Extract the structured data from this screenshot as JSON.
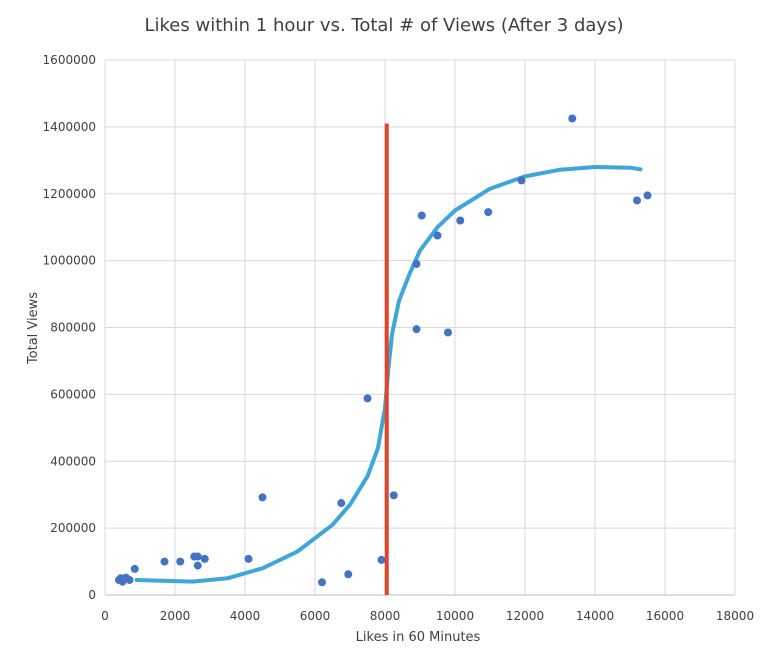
{
  "chart_data": {
    "type": "scatter",
    "title": "Likes within 1 hour vs. Total # of Views (After 3 days)",
    "xlabel": "Likes in 60 Minutes",
    "ylabel": "Total Views",
    "xlim": [
      0,
      18000
    ],
    "ylim": [
      0,
      1600000
    ],
    "xticks": [
      0,
      2000,
      4000,
      6000,
      8000,
      10000,
      12000,
      14000,
      16000,
      18000
    ],
    "yticks": [
      0,
      200000,
      400000,
      600000,
      800000,
      1000000,
      1200000,
      1400000,
      1600000
    ],
    "x_tick_labels": [
      "0",
      "2000",
      "4000",
      "6000",
      "8000",
      "10000",
      "12000",
      "14000",
      "16000",
      "18000"
    ],
    "y_tick_labels": [
      "0",
      "200000",
      "400000",
      "600000",
      "800000",
      "1000000",
      "1200000",
      "1400000",
      "1600000"
    ],
    "grid": true,
    "colors": {
      "points": "#4472c4",
      "trend": "#3ea6d8",
      "threshold": "#e0452a"
    },
    "points": [
      {
        "x": 400,
        "y": 45000
      },
      {
        "x": 450,
        "y": 50000
      },
      {
        "x": 500,
        "y": 40000
      },
      {
        "x": 550,
        "y": 48000
      },
      {
        "x": 600,
        "y": 52000
      },
      {
        "x": 700,
        "y": 45000
      },
      {
        "x": 850,
        "y": 78000
      },
      {
        "x": 1700,
        "y": 100000
      },
      {
        "x": 2150,
        "y": 100000
      },
      {
        "x": 2550,
        "y": 115000
      },
      {
        "x": 2650,
        "y": 115000
      },
      {
        "x": 2650,
        "y": 88000
      },
      {
        "x": 2850,
        "y": 108000
      },
      {
        "x": 4100,
        "y": 108000
      },
      {
        "x": 4500,
        "y": 292000
      },
      {
        "x": 6200,
        "y": 38000
      },
      {
        "x": 6750,
        "y": 275000
      },
      {
        "x": 6950,
        "y": 62000
      },
      {
        "x": 7500,
        "y": 588000
      },
      {
        "x": 7900,
        "y": 105000
      },
      {
        "x": 8250,
        "y": 298000
      },
      {
        "x": 8900,
        "y": 990000
      },
      {
        "x": 8900,
        "y": 795000
      },
      {
        "x": 9050,
        "y": 1135000
      },
      {
        "x": 9500,
        "y": 1075000
      },
      {
        "x": 9800,
        "y": 785000
      },
      {
        "x": 10150,
        "y": 1120000
      },
      {
        "x": 10950,
        "y": 1145000
      },
      {
        "x": 11900,
        "y": 1240000
      },
      {
        "x": 13350,
        "y": 1425000
      },
      {
        "x": 15200,
        "y": 1180000
      },
      {
        "x": 15500,
        "y": 1195000
      }
    ],
    "trendline": {
      "x": [
        900,
        1500,
        2500,
        3500,
        4500,
        5500,
        6500,
        7000,
        7500,
        7800,
        8000,
        8100,
        8200,
        8400,
        8700,
        9000,
        9500,
        10000,
        11000,
        12000,
        13000,
        14000,
        15000,
        15300
      ],
      "y": [
        45000,
        43000,
        40000,
        50000,
        80000,
        130000,
        210000,
        270000,
        355000,
        440000,
        560000,
        680000,
        780000,
        880000,
        960000,
        1030000,
        1100000,
        1150000,
        1215000,
        1252000,
        1272000,
        1280000,
        1278000,
        1273000
      ]
    },
    "threshold_line": {
      "x": 8050,
      "y_range": [
        0,
        1410000
      ]
    }
  }
}
